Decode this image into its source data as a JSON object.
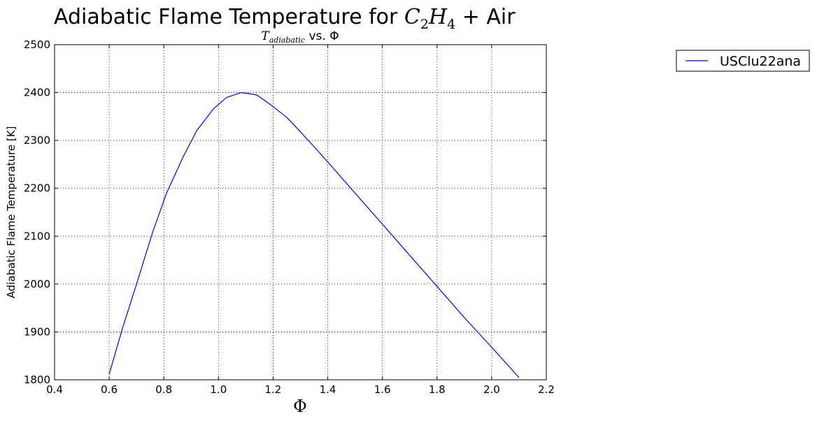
{
  "chart_data": {
    "type": "line",
    "title": "Adiabatic Flame Temperature for C₂H₄ + Air",
    "title_parts": {
      "prefix": "Adiabatic Flame Temperature for ",
      "C": "C",
      "sub2": "2",
      "H": "H",
      "sub4": "4",
      "suffix": " + Air"
    },
    "subtitle": "Tadiabatic vs. Φ",
    "subtitle_parts": {
      "T": "T",
      "sub": "adiabatic",
      "suffix": " vs. Φ"
    },
    "xlabel": "Φ",
    "ylabel": "Adiabatic Flame Temperature [K]",
    "xlim": [
      0.4,
      2.2
    ],
    "ylim": [
      1800,
      2500
    ],
    "xticks": [
      0.4,
      0.6,
      0.8,
      1.0,
      1.2,
      1.4,
      1.6,
      1.8,
      2.0,
      2.2
    ],
    "xtick_labels": [
      "0.4",
      "0.6",
      "0.8",
      "1.0",
      "1.2",
      "1.4",
      "1.6",
      "1.8",
      "2.0",
      "2.2"
    ],
    "yticks": [
      1800,
      1900,
      2000,
      2100,
      2200,
      2300,
      2400,
      2500
    ],
    "ytick_labels": [
      "1800",
      "1900",
      "2000",
      "2100",
      "2200",
      "2300",
      "2400",
      "2500"
    ],
    "grid": true,
    "legend_position": "outside-top-right",
    "series": [
      {
        "name": "USClu22ana",
        "color": "#0000ff",
        "x": [
          0.6,
          0.65,
          0.7,
          0.76,
          0.81,
          0.87,
          0.92,
          0.98,
          1.03,
          1.085,
          1.14,
          1.19,
          1.25,
          1.3,
          1.35,
          1.4,
          1.5,
          1.6,
          1.7,
          1.8,
          1.9,
          2.0,
          2.1
        ],
        "y": [
          1812,
          1910,
          2000,
          2110,
          2190,
          2265,
          2320,
          2365,
          2390,
          2400,
          2395,
          2375,
          2348,
          2318,
          2287,
          2255,
          2190,
          2125,
          2060,
          1995,
          1930,
          1868,
          1805
        ]
      }
    ]
  }
}
